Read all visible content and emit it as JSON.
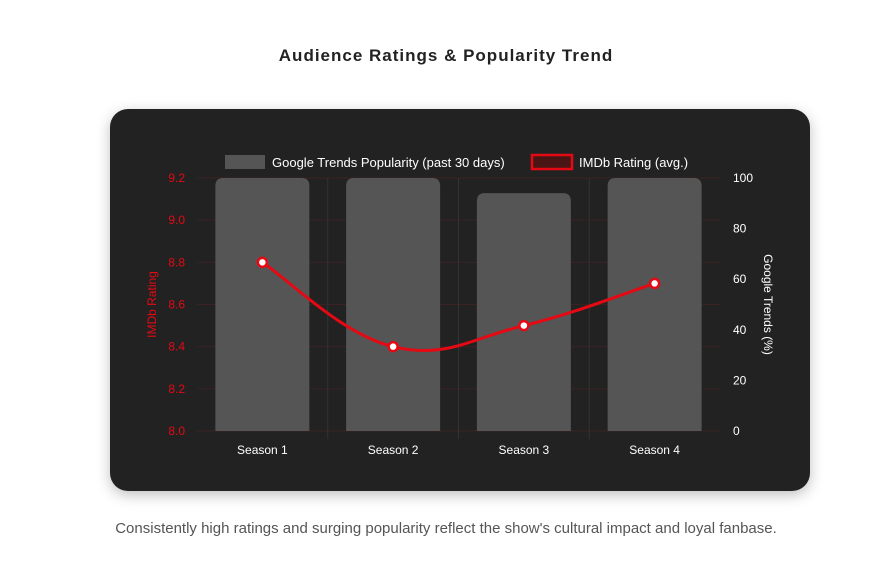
{
  "title": "Audience Ratings & Popularity Trend",
  "caption": "Consistently high ratings and surging popularity reflect the show's cultural impact and loyal fanbase.",
  "chart_data": {
    "type": "bar+line",
    "categories": [
      "Season 1",
      "Season 2",
      "Season 3",
      "Season 4"
    ],
    "series": [
      {
        "name": "Google Trends Popularity (past 30 days)",
        "type": "bar",
        "axis": "right",
        "values": [
          100,
          100,
          94,
          100
        ],
        "color": "#555555"
      },
      {
        "name": "IMDb Rating (avg.)",
        "type": "line",
        "axis": "left",
        "values": [
          8.8,
          8.4,
          8.5,
          8.7
        ],
        "color": "#e50914"
      }
    ],
    "left_axis": {
      "label": "IMDb Rating",
      "range": [
        8.0,
        9.2
      ],
      "ticks": [
        "8.0",
        "8.2",
        "8.4",
        "8.6",
        "8.8",
        "9.0",
        "9.2"
      ],
      "color": "#e50914"
    },
    "right_axis": {
      "label": "Google Trends (%)",
      "range": [
        0,
        100
      ],
      "ticks": [
        "0",
        "20",
        "40",
        "60",
        "80",
        "100"
      ],
      "color": "#ffffff"
    },
    "legend": "top",
    "grid": true
  }
}
